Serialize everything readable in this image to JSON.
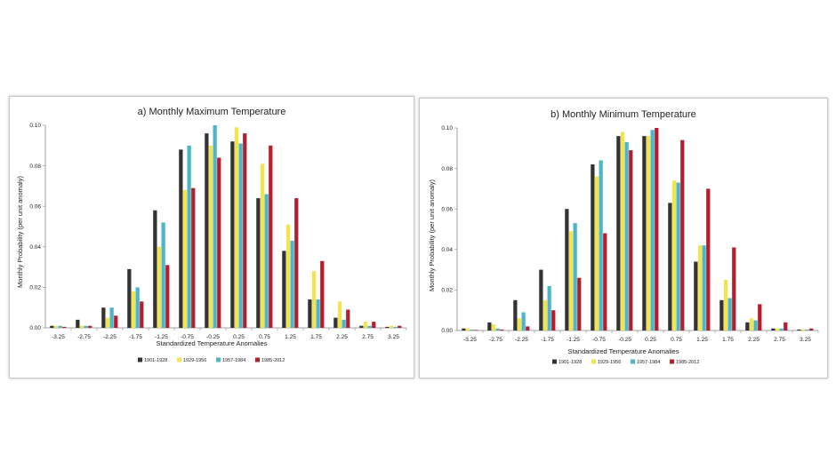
{
  "colors": {
    "s1": "#333333",
    "s2": "#f3e34c",
    "s3": "#4cb5c9",
    "s4": "#b41f2e"
  },
  "chart_data": [
    {
      "type": "bar",
      "title": "a) Monthly Maximum Temperature",
      "xlabel": "Standardized Temperature Anomalies",
      "ylabel": "Monthly Probability (per unit anomaly)",
      "ylim": [
        0,
        0.1
      ],
      "yticks": [
        "0.00",
        "0.02",
        "0.04",
        "0.06",
        "0.08",
        "0.10"
      ],
      "grid": false,
      "legend_position": "bottom",
      "categories": [
        "-3.25",
        "-2.75",
        "-2.25",
        "-1.75",
        "-1.25",
        "-0.75",
        "-0.25",
        "0.25",
        "0.75",
        "1.25",
        "1.75",
        "2.25",
        "2.75",
        "3.25"
      ],
      "series": [
        {
          "name": "1901-1928",
          "values": [
            0.001,
            0.004,
            0.01,
            0.029,
            0.058,
            0.088,
            0.096,
            0.092,
            0.064,
            0.038,
            0.014,
            0.005,
            0.001,
            0.0005
          ]
        },
        {
          "name": "1929-1956",
          "values": [
            0.001,
            0.001,
            0.005,
            0.018,
            0.04,
            0.068,
            0.09,
            0.099,
            0.081,
            0.051,
            0.028,
            0.013,
            0.003,
            0.001
          ]
        },
        {
          "name": "1957-1984",
          "values": [
            0.001,
            0.001,
            0.01,
            0.02,
            0.052,
            0.09,
            0.1,
            0.091,
            0.066,
            0.043,
            0.014,
            0.004,
            0.001,
            0.0005
          ]
        },
        {
          "name": "1985-2012",
          "values": [
            0.0005,
            0.001,
            0.006,
            0.013,
            0.031,
            0.069,
            0.084,
            0.096,
            0.09,
            0.064,
            0.033,
            0.009,
            0.003,
            0.001
          ]
        }
      ]
    },
    {
      "type": "bar",
      "title": "b) Monthly Minimum Temperature",
      "xlabel": "Standardized Temperature Anomalies",
      "ylabel": "Monthly Probability (per unit anomaly)",
      "ylim": [
        0,
        0.1
      ],
      "yticks": [
        "0.00",
        "0.02",
        "0.04",
        "0.06",
        "0.08",
        "0.10"
      ],
      "grid": false,
      "legend_position": "bottom",
      "categories": [
        "-3.25",
        "-2.75",
        "-2.25",
        "-1.75",
        "-1.25",
        "-0.75",
        "-0.25",
        "0.25",
        "0.75",
        "1.25",
        "1.75",
        "2.25",
        "2.75",
        "3.25"
      ],
      "series": [
        {
          "name": "1901-1928",
          "values": [
            0.001,
            0.004,
            0.015,
            0.03,
            0.06,
            0.082,
            0.096,
            0.096,
            0.063,
            0.034,
            0.015,
            0.004,
            0.001,
            0.0005
          ]
        },
        {
          "name": "1929-1956",
          "values": [
            0.001,
            0.003,
            0.006,
            0.015,
            0.049,
            0.076,
            0.098,
            0.096,
            0.074,
            0.042,
            0.025,
            0.006,
            0.001,
            0.0005
          ]
        },
        {
          "name": "1957-1984",
          "values": [
            0.0005,
            0.001,
            0.009,
            0.022,
            0.053,
            0.084,
            0.093,
            0.099,
            0.073,
            0.042,
            0.016,
            0.005,
            0.001,
            0.0005
          ]
        },
        {
          "name": "1985-2012",
          "values": [
            0.0003,
            0.0005,
            0.002,
            0.01,
            0.026,
            0.048,
            0.089,
            0.1,
            0.094,
            0.07,
            0.041,
            0.013,
            0.004,
            0.001
          ]
        }
      ]
    }
  ]
}
